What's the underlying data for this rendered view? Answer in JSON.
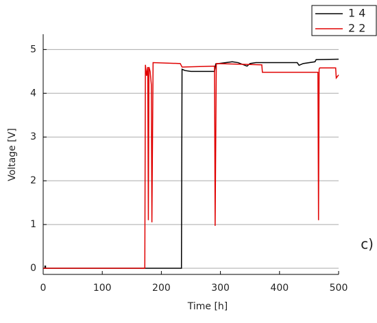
{
  "chart_data": {
    "type": "line",
    "xlabel": "Time [h]",
    "ylabel": "Voltage [V]",
    "annotation": "c)",
    "xlim": [
      0,
      500
    ],
    "ylim": [
      -0.14,
      5.35
    ],
    "xticks": [
      0,
      100,
      200,
      300,
      400,
      500
    ],
    "yticks": [
      0,
      1,
      2,
      3,
      4,
      5
    ],
    "grid": true,
    "legend": "top-right",
    "series": [
      {
        "name": "1 4",
        "color": "#000000",
        "x": [
          0,
          3,
          3,
          4,
          4,
          234,
          235,
          240,
          250,
          290,
          292,
          320,
          330,
          345,
          350,
          360,
          430,
          433,
          440,
          460,
          462,
          500
        ],
        "values": [
          0,
          0,
          0.05,
          0.05,
          0,
          0,
          4.55,
          4.52,
          4.5,
          4.5,
          4.67,
          4.72,
          4.7,
          4.62,
          4.68,
          4.7,
          4.7,
          4.64,
          4.68,
          4.72,
          4.77,
          4.78
        ]
      },
      {
        "name": "2 2",
        "color": "#e00000",
        "x": [
          0,
          172,
          173,
          175,
          177,
          178,
          179,
          181,
          183,
          184,
          186,
          232,
          235,
          290,
          291,
          293,
          370,
          371,
          465,
          466,
          467,
          468,
          495,
          496,
          500
        ],
        "values": [
          0,
          0,
          4.65,
          4.4,
          4.6,
          1.1,
          4.6,
          4.5,
          4.2,
          1.05,
          4.7,
          4.68,
          4.6,
          4.62,
          0.97,
          4.68,
          4.65,
          4.48,
          4.48,
          1.1,
          4.55,
          4.58,
          4.58,
          4.35,
          4.42
        ]
      }
    ]
  }
}
